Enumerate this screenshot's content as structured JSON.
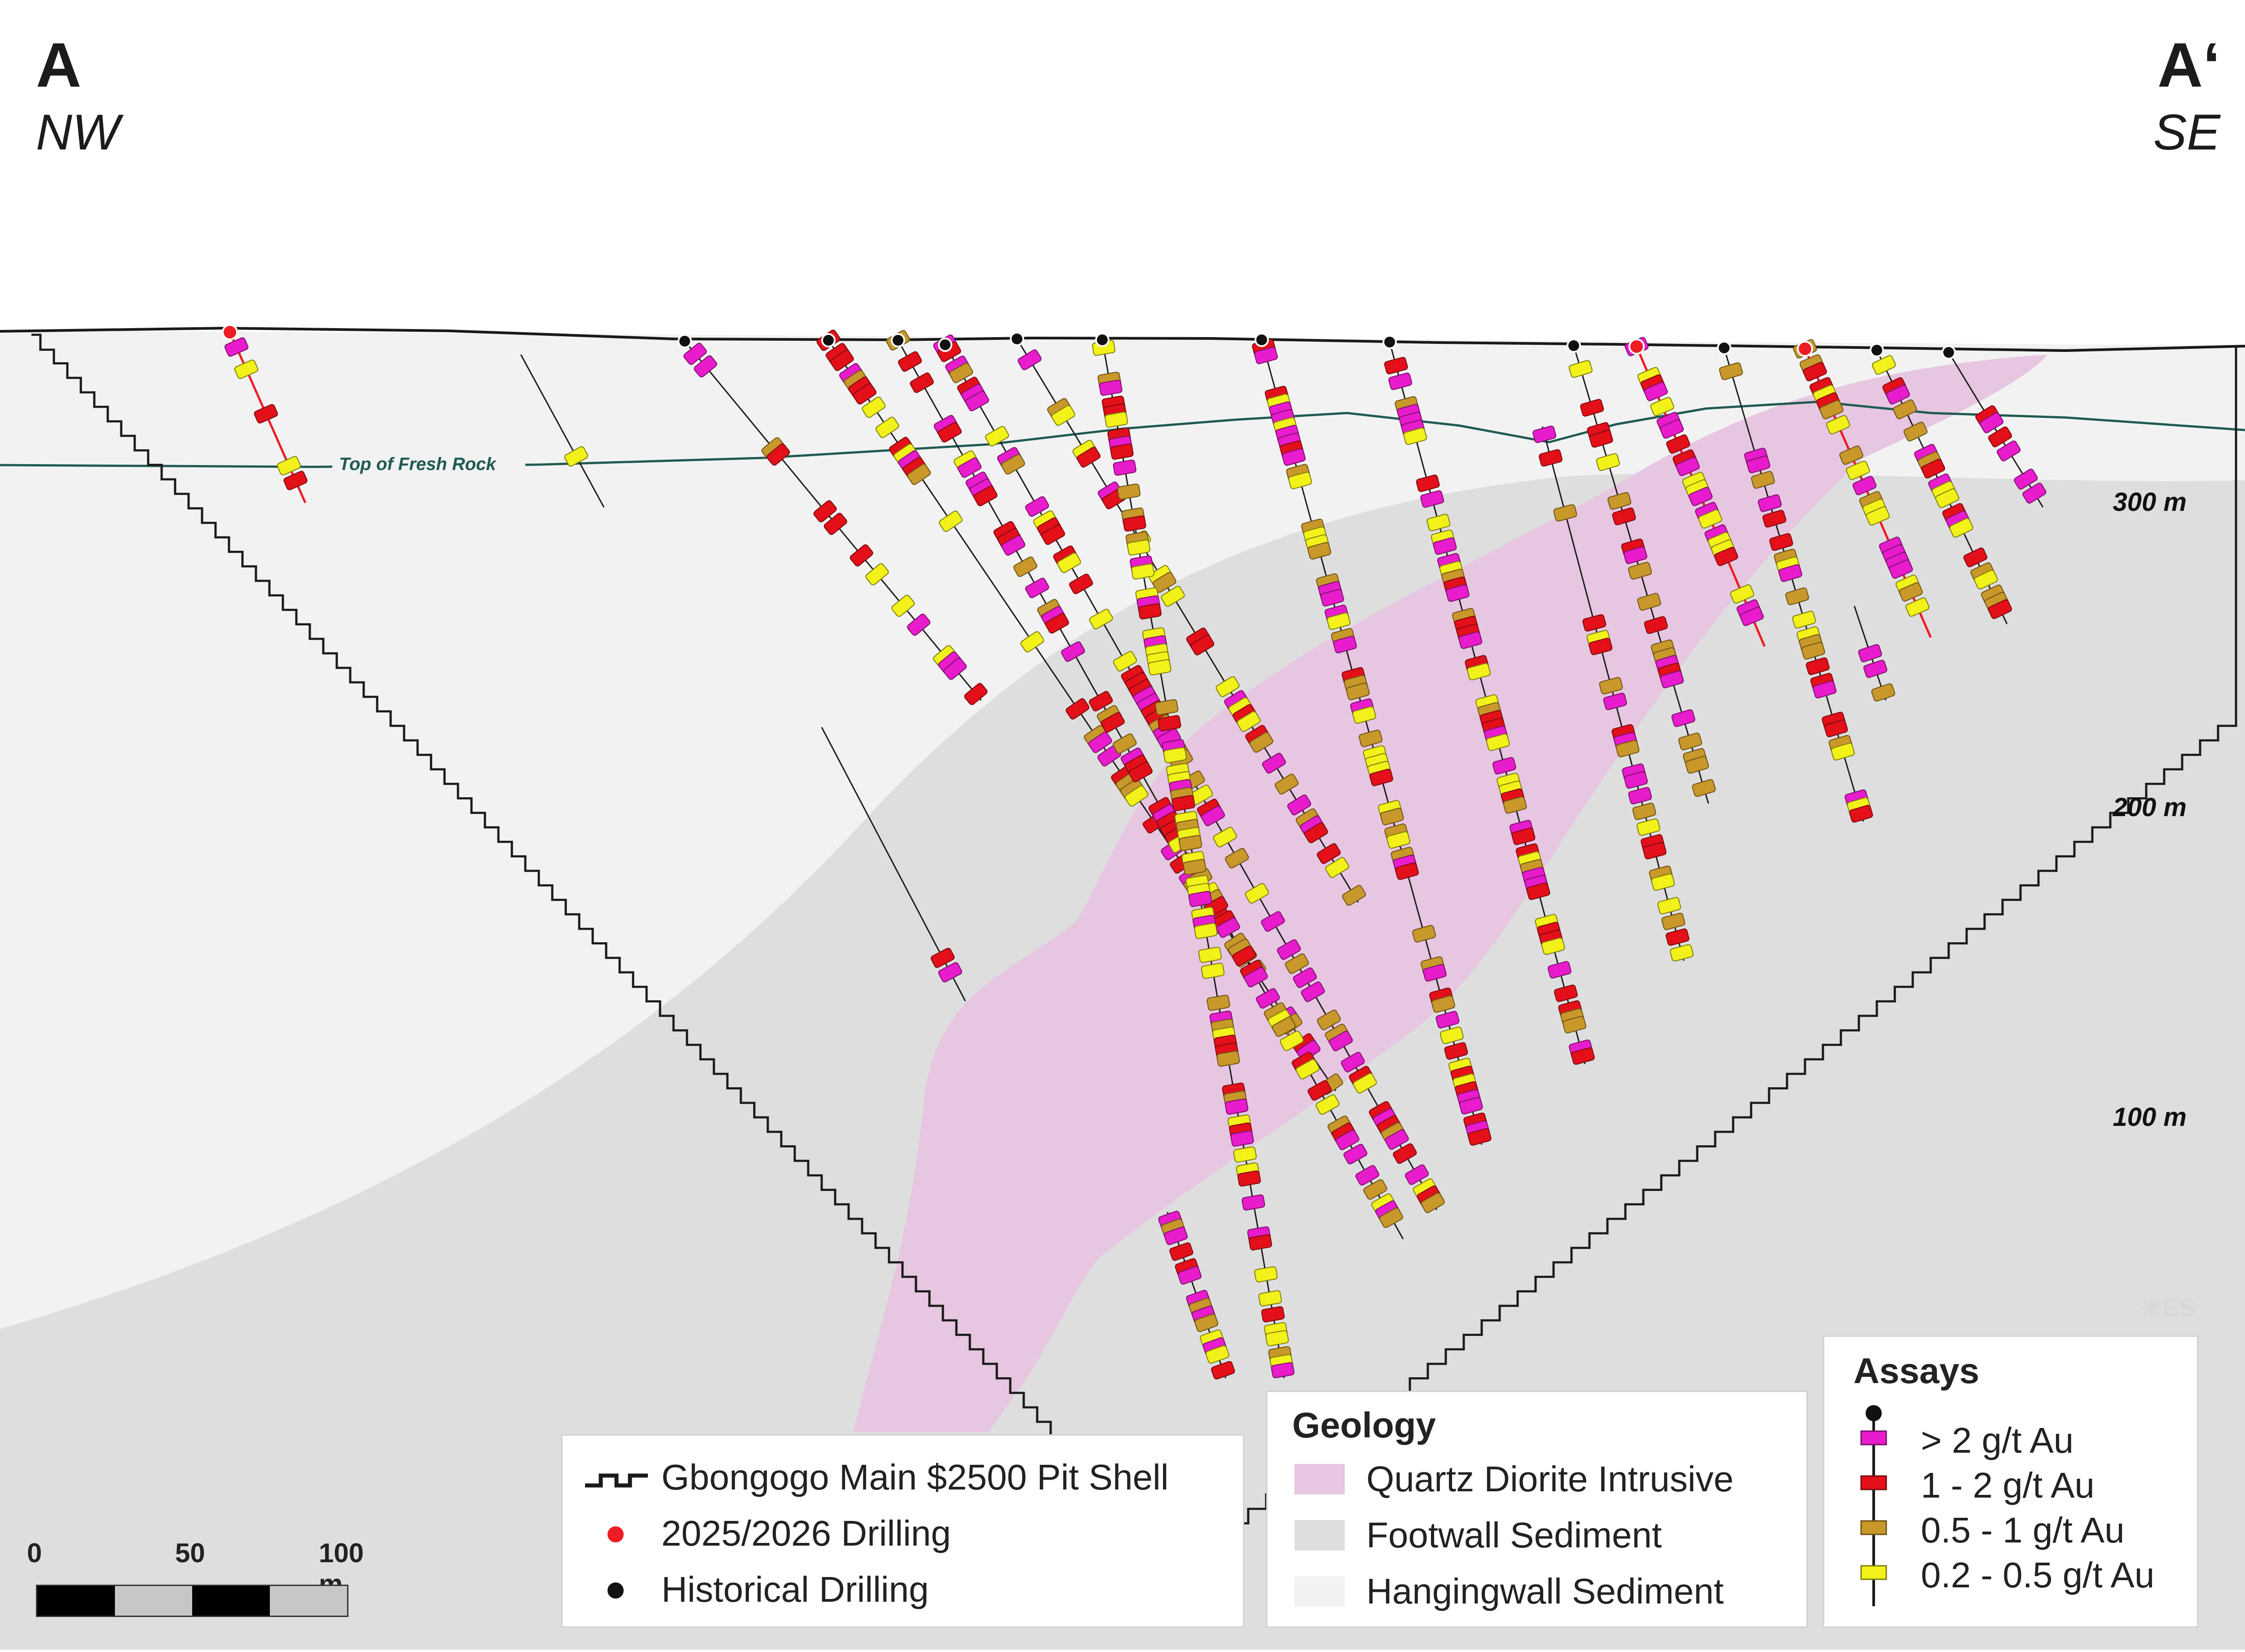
{
  "section": {
    "start_label": "A",
    "start_direction": "NW",
    "end_label": "A‘",
    "end_direction": "SE"
  },
  "elevation_labels": [
    "300 m",
    "200 m",
    "100 m"
  ],
  "fresh_rock_label": "Top of Fresh Rock",
  "legend_main": {
    "items": [
      {
        "label": "Gbongogo Main $2500 Pit Shell",
        "symbol": "pit-shell-line"
      },
      {
        "label": "2025/2026 Drilling",
        "symbol": "dot",
        "color": "#ee1c24"
      },
      {
        "label": "Historical Drilling",
        "symbol": "dot",
        "color": "#111111"
      }
    ]
  },
  "legend_geology": {
    "title": "Geology",
    "items": [
      {
        "label": "Quartz Diorite Intrusive",
        "color": "#e6c6e0"
      },
      {
        "label": "Footwall Sediment",
        "color": "#dedede"
      },
      {
        "label": "Hangingwall Sediment",
        "color": "#f2f2f2"
      }
    ]
  },
  "legend_assays": {
    "title": "Assays",
    "items": [
      {
        "label": "> 2 g/t Au",
        "color": "#e81ccc"
      },
      {
        "label": "1 - 2 g/t Au",
        "color": "#e3101a"
      },
      {
        "label": "0.5 - 1 g/t Au",
        "color": "#c8982a"
      },
      {
        "label": "0.2 - 0.5 g/t Au",
        "color": "#f2f21a"
      }
    ]
  },
  "scale_bar": {
    "labels": [
      "0",
      "50",
      "100 m"
    ]
  },
  "watermark": "❈ES",
  "colors": {
    "quartz_diorite": "#e6c6e0",
    "footwall": "#dedede",
    "hangingwall": "#f2f2f2",
    "fresh_rock_line": "#1f5a52",
    "new_drilling": "#ee1c24",
    "historical_drilling": "#111111"
  }
}
